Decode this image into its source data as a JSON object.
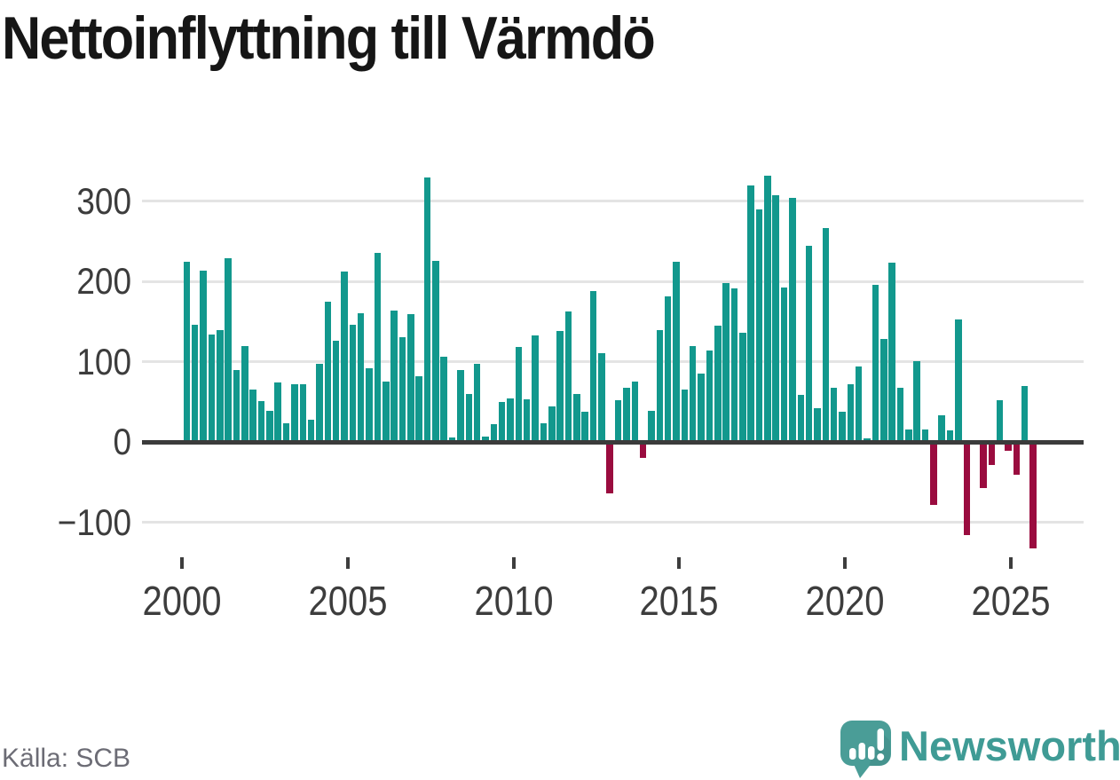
{
  "title": "Nettoinflyttning till Värmdö",
  "source": "Källa: SCB",
  "logo": {
    "brand": "Newsworthy",
    "icon": "newsworthy-speech-bubble-chart-icon",
    "icon_color": "#4a9d97",
    "wordmark_color": "#3f9b95"
  },
  "colors": {
    "positive_bar": "#12988d",
    "negative_bar": "#9a0c3f",
    "zero_axis": "#3b3b3b",
    "gridline": "#e4e4e4",
    "tick_label": "#3d3d3d",
    "title_text": "#161616",
    "source_text": "#6c6c75"
  },
  "chart_data": {
    "type": "bar",
    "title": "Nettoinflyttning till Värmdö",
    "xlabel": "",
    "ylabel": "",
    "frequency": "quarterly",
    "x_start": "2000-Q1",
    "x_end": "2025-Q3",
    "values": [
      225,
      146,
      213,
      134,
      139,
      229,
      90,
      120,
      66,
      51,
      39,
      74,
      23,
      72,
      72,
      28,
      98,
      175,
      126,
      212,
      146,
      160,
      92,
      236,
      75,
      164,
      131,
      159,
      82,
      329,
      226,
      106,
      6,
      90,
      60,
      97,
      7,
      22,
      50,
      55,
      118,
      53,
      133,
      24,
      45,
      138,
      163,
      60,
      38,
      188,
      111,
      -64,
      52,
      68,
      75,
      -20,
      39,
      139,
      182,
      225,
      66,
      120,
      85,
      114,
      145,
      198,
      191,
      136,
      320,
      290,
      332,
      307,
      193,
      304,
      59,
      244,
      42,
      267,
      68,
      38,
      72,
      94,
      5,
      196,
      129,
      224,
      68,
      16,
      101,
      16,
      -78,
      33,
      15,
      153,
      -116,
      0,
      -57,
      -28,
      52,
      -11,
      -40,
      70,
      -132
    ],
    "x_tick_years": [
      2000,
      2005,
      2010,
      2015,
      2020,
      2025
    ],
    "y_ticks": [
      300,
      200,
      100,
      0,
      -100
    ],
    "y_tick_labels": [
      "300",
      "200",
      "100",
      "0",
      "−100"
    ],
    "ylim": [
      -150,
      345
    ],
    "grid": "horizontal",
    "legend": "none",
    "positive_color": "#12988d",
    "negative_color": "#9a0c3f"
  }
}
